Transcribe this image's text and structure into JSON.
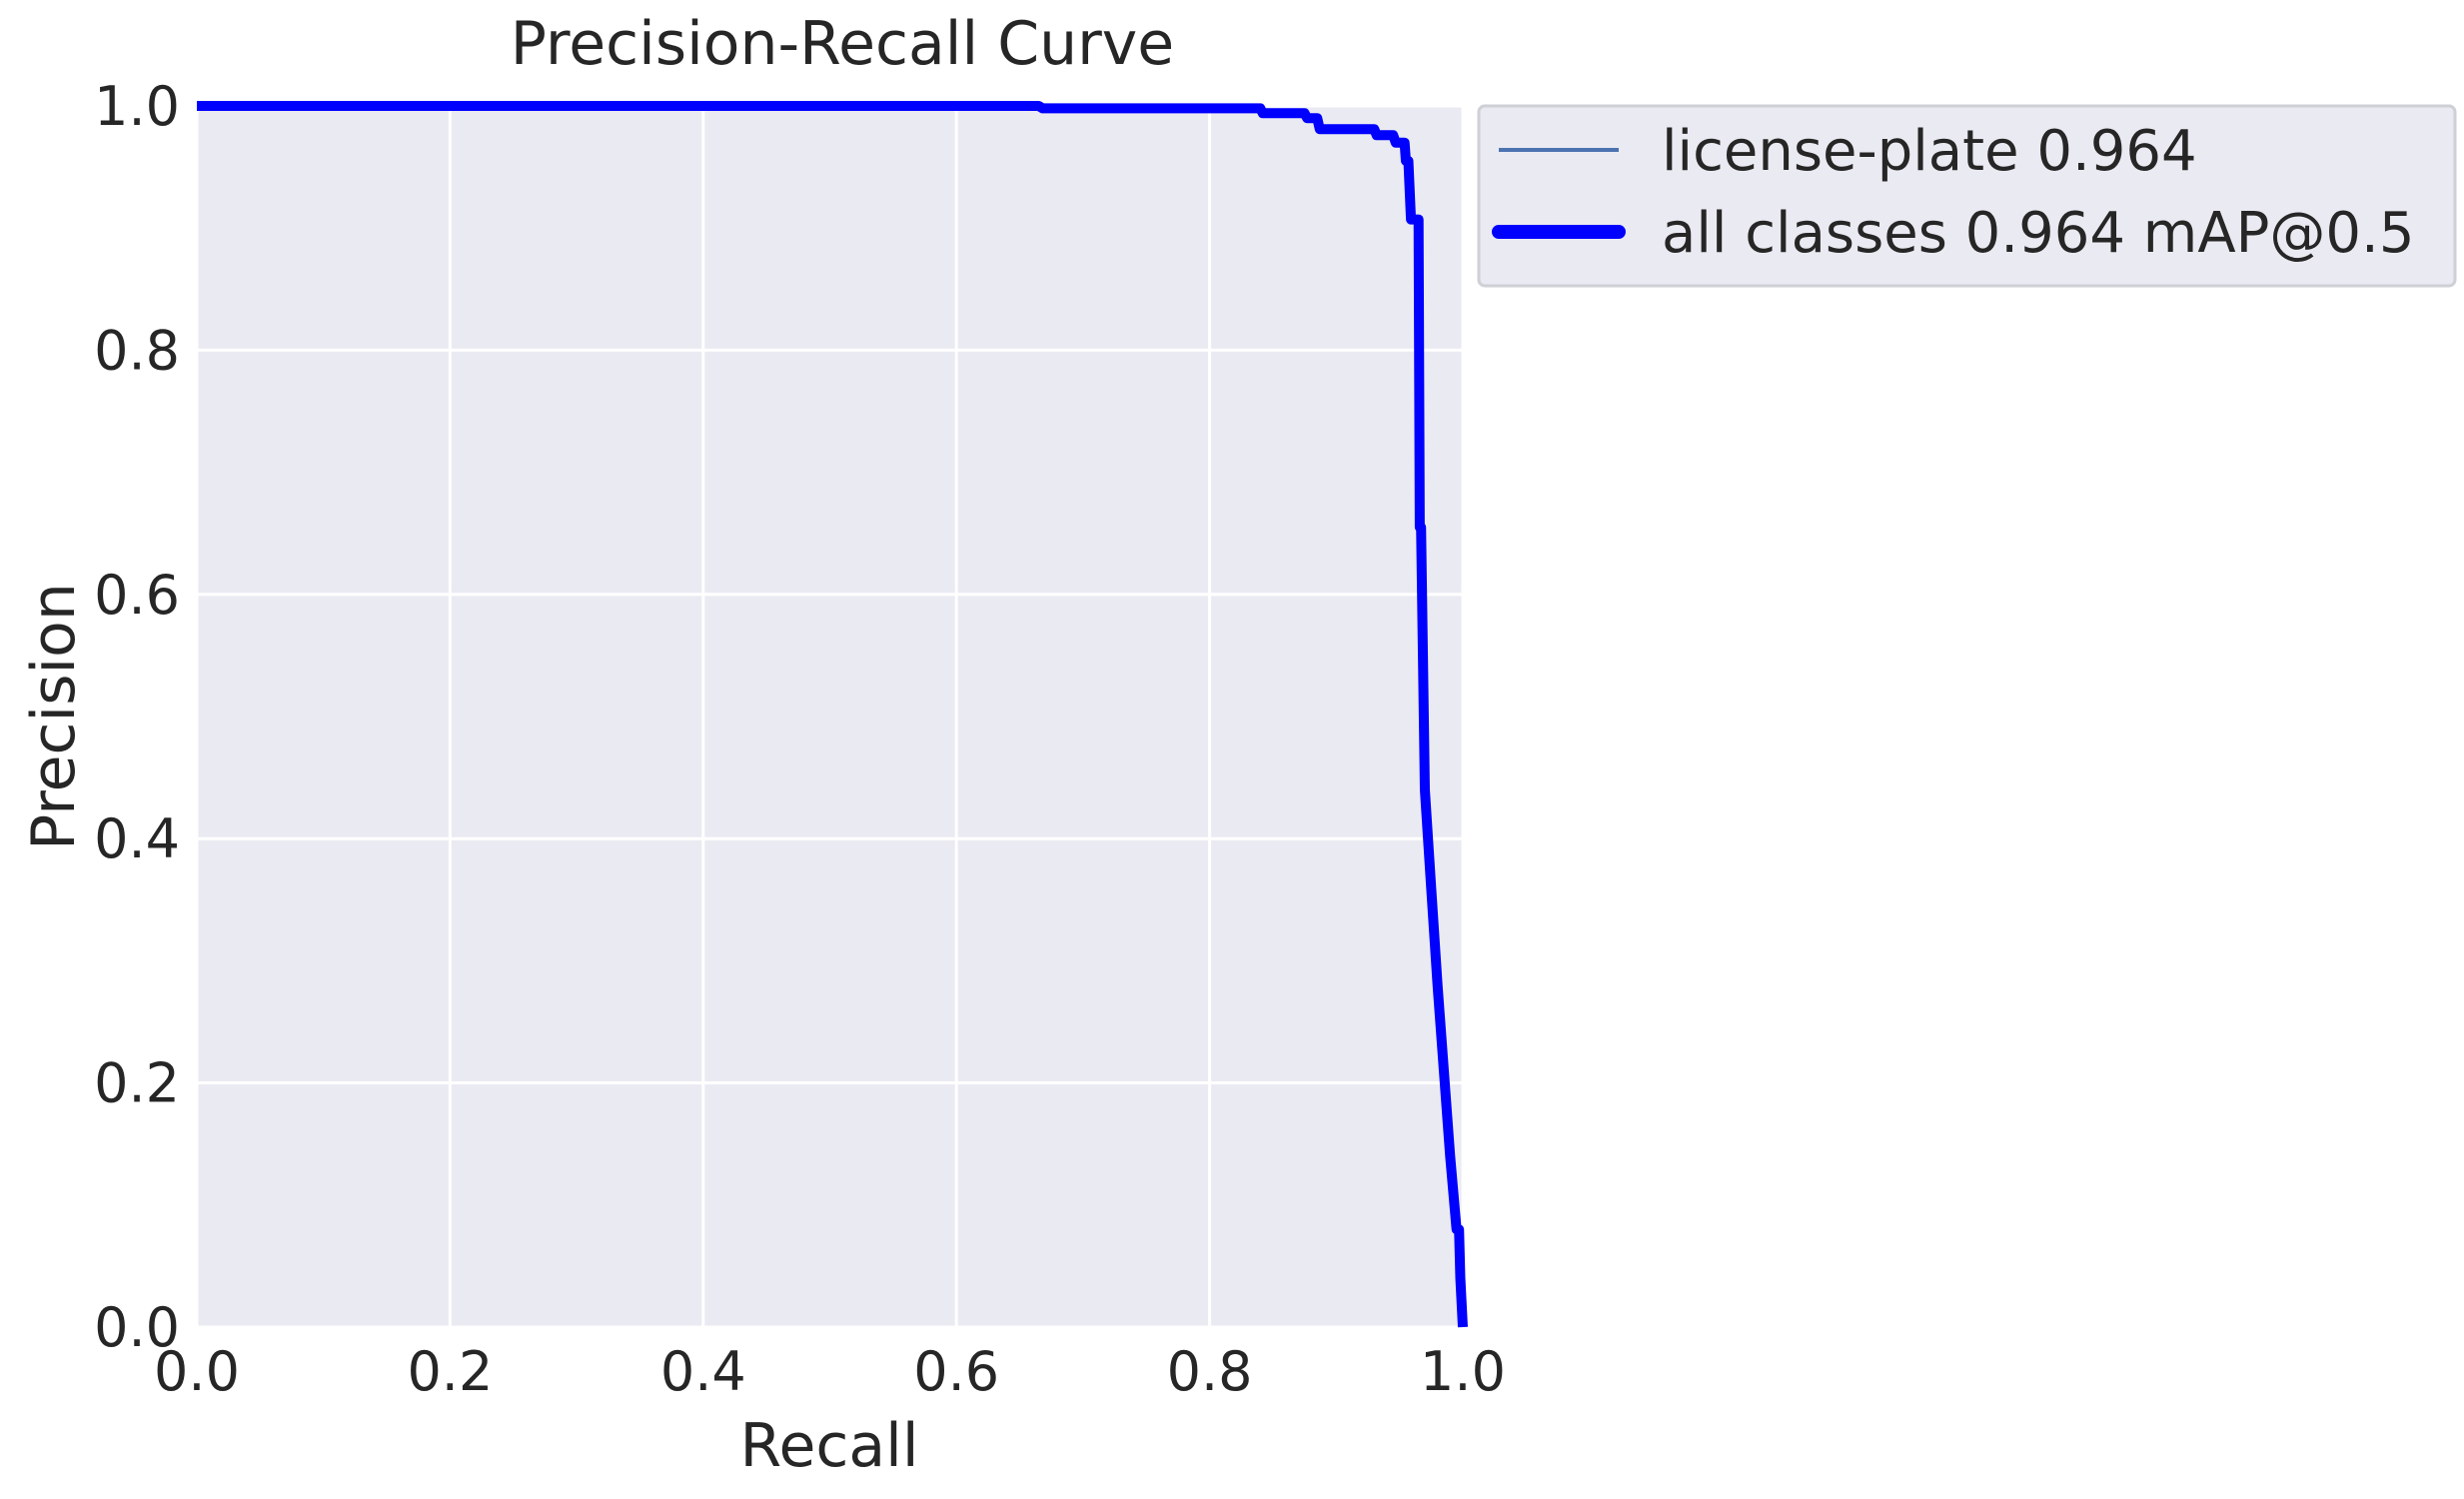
{
  "chart_data": {
    "type": "line",
    "title": "Precision-Recall Curve",
    "xlabel": "Recall",
    "ylabel": "Precision",
    "xlim": [
      0,
      1
    ],
    "ylim": [
      0,
      1
    ],
    "xticks": [
      "0.0",
      "0.2",
      "0.4",
      "0.6",
      "0.8",
      "1.0"
    ],
    "yticks": [
      "0.0",
      "0.2",
      "0.4",
      "0.6",
      "0.8",
      "1.0"
    ],
    "grid": true,
    "legend_position": "outside upper right",
    "series": [
      {
        "name": "license-plate 0.964",
        "color": "#4c72b0",
        "x": [
          0.0,
          0.665,
          0.668,
          0.84,
          0.842,
          0.875,
          0.877,
          0.885,
          0.887,
          0.93,
          0.932,
          0.945,
          0.947,
          0.954,
          0.955,
          0.957,
          0.959,
          0.965,
          0.966,
          0.967,
          0.97,
          0.975,
          0.98,
          0.985,
          0.99,
          0.995,
          0.997,
          0.998,
          1.0
        ],
        "y": [
          1.0,
          1.0,
          0.998,
          0.998,
          0.994,
          0.994,
          0.99,
          0.99,
          0.981,
          0.981,
          0.976,
          0.976,
          0.97,
          0.97,
          0.955,
          0.955,
          0.907,
          0.907,
          0.655,
          0.655,
          0.44,
          0.36,
          0.28,
          0.21,
          0.14,
          0.08,
          0.08,
          0.04,
          0.0
        ]
      },
      {
        "name": "all classes 0.964 mAP@0.5",
        "color": "#0000ff",
        "x": [
          0.0,
          0.665,
          0.668,
          0.84,
          0.842,
          0.875,
          0.877,
          0.885,
          0.887,
          0.93,
          0.932,
          0.945,
          0.947,
          0.954,
          0.955,
          0.957,
          0.959,
          0.965,
          0.966,
          0.967,
          0.97,
          0.975,
          0.98,
          0.985,
          0.99,
          0.995,
          0.997,
          0.998,
          1.0
        ],
        "y": [
          1.0,
          1.0,
          0.998,
          0.998,
          0.994,
          0.994,
          0.99,
          0.99,
          0.981,
          0.981,
          0.976,
          0.976,
          0.97,
          0.97,
          0.955,
          0.955,
          0.907,
          0.907,
          0.655,
          0.655,
          0.44,
          0.36,
          0.28,
          0.21,
          0.14,
          0.08,
          0.08,
          0.04,
          0.0
        ]
      }
    ]
  }
}
